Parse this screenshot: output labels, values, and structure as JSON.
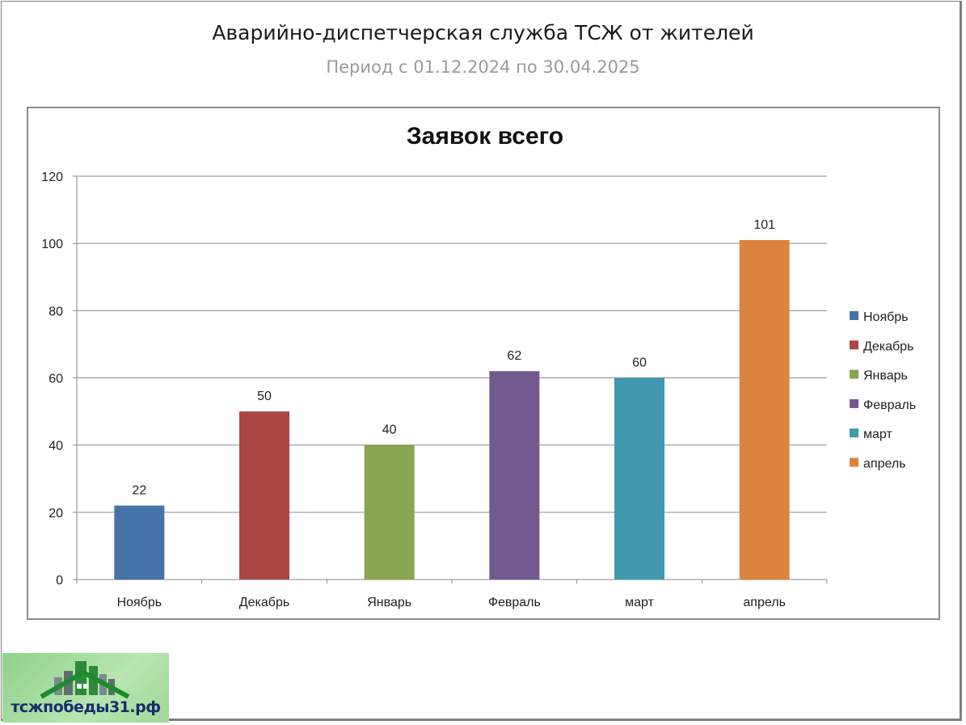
{
  "slide": {
    "title": "Аварийно-диспетчерская служба ТСЖ от жителей",
    "subtitle": "Период с 01.12.2024 по 30.04.2025"
  },
  "chart_data": {
    "type": "bar",
    "title": "Заявок всего",
    "categories": [
      "Ноябрь",
      "Декабрь",
      "Январь",
      "Февраль",
      "март",
      "апрель"
    ],
    "values": [
      22,
      50,
      40,
      62,
      60,
      101
    ],
    "colors": [
      "#4572a7",
      "#aa4643",
      "#89a54e",
      "#71588f",
      "#4198af",
      "#db843d"
    ],
    "ylim": [
      0,
      120
    ],
    "yticks": [
      0,
      20,
      40,
      60,
      80,
      100,
      120
    ],
    "grid": true,
    "legend": "right",
    "data_labels": true
  },
  "logo": {
    "text": "тсжпобеды31.рф"
  }
}
